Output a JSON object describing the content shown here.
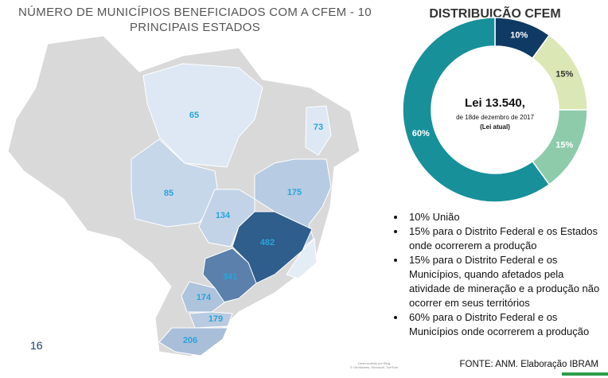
{
  "chart_data": [
    {
      "type": "map",
      "title": "NÚMERO DE MUNICÍPIOS BENEFICIADOS COM A CFEM - 10 PRINCIPAIS ESTADOS",
      "values": [
        65,
        73,
        85,
        175,
        134,
        482,
        341,
        174,
        179,
        206
      ],
      "colors": [
        "#dde8f4",
        "#dde8f4",
        "#c7d7ea",
        "#b7cbe2",
        "#c3d3e7",
        "#2f5d8c",
        "#5a80ab",
        "#aec3dc",
        "#b9cbe0",
        "#a9bed8"
      ],
      "label_color": "#2aa4da",
      "credit": [
        "Desenvolvido por Bing",
        "© GeoNames, Microsoft, TomTom"
      ]
    },
    {
      "type": "pie",
      "title": "DISTRIBUIÇÃO CFEM",
      "center_text": [
        "Lei 13.540,",
        "de 18de dezembro de 2017",
        "(Lei atual)"
      ],
      "values": [
        10,
        15,
        15,
        60
      ],
      "value_labels": [
        "10%",
        "15%",
        "15%",
        "60%"
      ],
      "colors": [
        "#0e3a64",
        "#dce7b6",
        "#8dcbab",
        "#17909a"
      ],
      "label_colors": [
        "#ffffff",
        "#333333",
        "#ffffff",
        "#ffffff"
      ]
    }
  ],
  "bullets": [
    "10% União",
    "15% para o Distrito Federal e os Estados onde ocorrerem a produção",
    "15% para o Distrito Federal e os Municípios, quando afetados pela atividade de mineração e a produção não ocorrer em seus territórios",
    "60% para o Distrito Federal e os Municípios onde ocorrerem a produção"
  ],
  "page_number": "16",
  "source": "FONTE: ANM. Elaboração IBRAM"
}
